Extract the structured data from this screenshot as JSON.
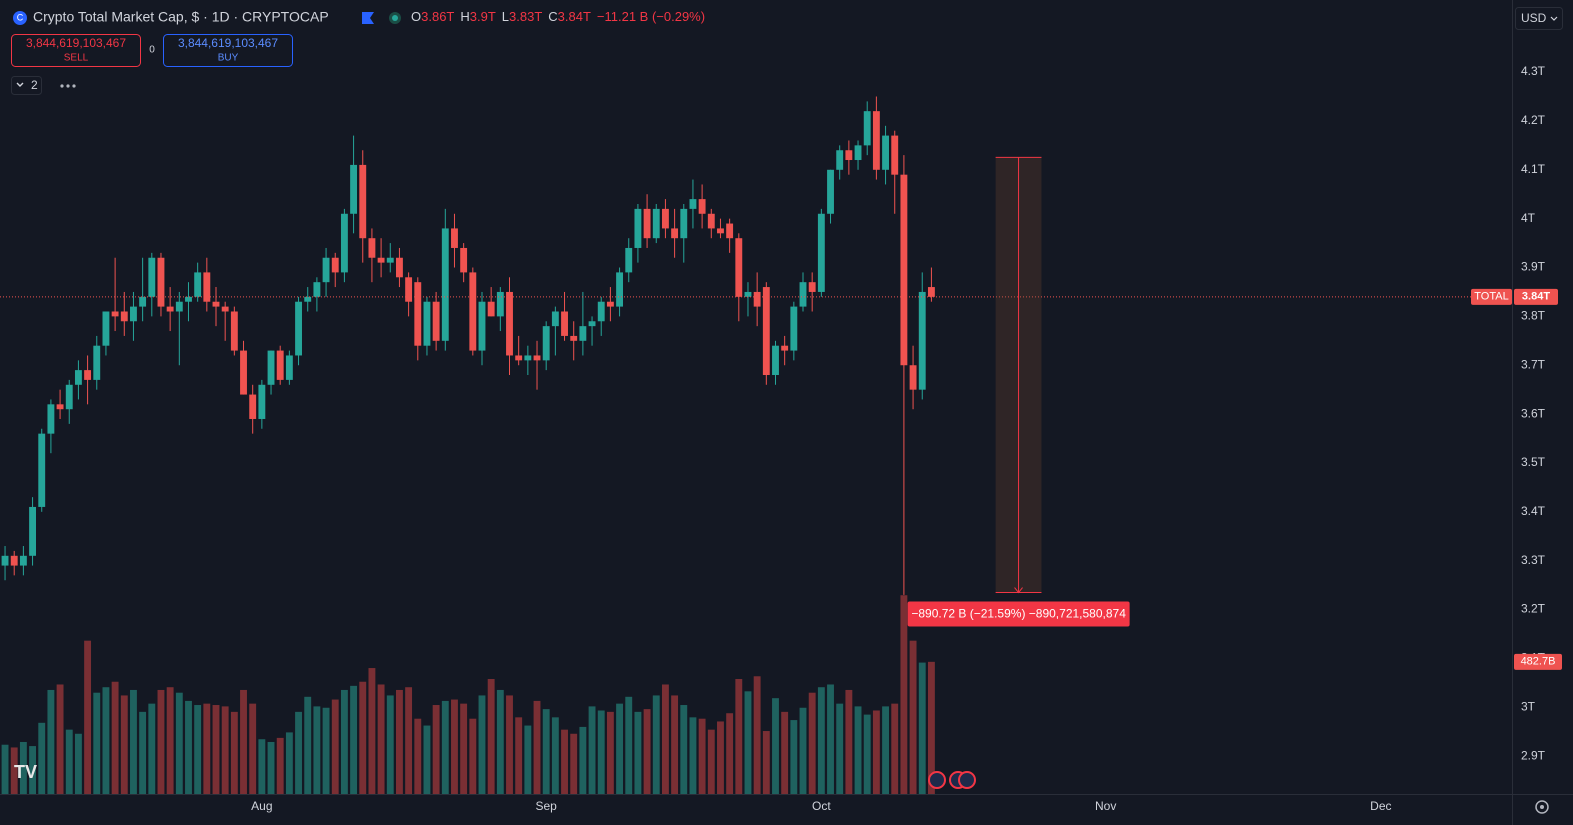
{
  "header": {
    "title": "Crypto Total Market Cap, $ · 1D · CRYPTOCAP",
    "ohlc": [
      {
        "key": "O",
        "value": "3.86T"
      },
      {
        "key": "H",
        "value": "3.9T"
      },
      {
        "key": "L",
        "value": "3.83T"
      },
      {
        "key": "C",
        "value": "3.84T"
      }
    ],
    "change": "−11.21 B (−0.29%)",
    "sell": {
      "price": "3,844,619,103,467",
      "label": "SELL"
    },
    "spread": "0",
    "buy": {
      "price": "3,844,619,103,467",
      "label": "BUY"
    },
    "indicators": "2",
    "currency": "USD"
  },
  "chart_data": {
    "type": "candlestick",
    "open": [
      3.29,
      3.31,
      3.29,
      3.31,
      3.41,
      3.56,
      3.62,
      3.61,
      3.66,
      3.69,
      3.67,
      3.74,
      3.81,
      3.81,
      3.79,
      3.82,
      3.84,
      3.92,
      3.82,
      3.81,
      3.83,
      3.84,
      3.89,
      3.83,
      3.82,
      3.81,
      3.73,
      3.64,
      3.59,
      3.66,
      3.73,
      3.67,
      3.72,
      3.83,
      3.84,
      3.87,
      3.92,
      3.89,
      4.01,
      4.11,
      3.96,
      3.92,
      3.91,
      3.92,
      3.88,
      3.87,
      3.74,
      3.83,
      3.75,
      3.98,
      3.94,
      3.89,
      3.73,
      3.83,
      3.8,
      3.85,
      3.72,
      3.71,
      3.72,
      3.71,
      3.78,
      3.81,
      3.76,
      3.75,
      3.78,
      3.79,
      3.83,
      3.82,
      3.89,
      3.94,
      4.02,
      3.96,
      4.02,
      3.98,
      3.96,
      4.02,
      4.04,
      4.01,
      3.98,
      3.99,
      3.96,
      3.84,
      3.85,
      3.86,
      3.68,
      3.74,
      3.73,
      3.82,
      3.87,
      3.85,
      4.01,
      4.1,
      4.14,
      4.12,
      4.15,
      4.22,
      4.1,
      4.17,
      4.09,
      3.7,
      3.65,
      3.86
    ],
    "high": [
      3.33,
      3.32,
      3.33,
      3.43,
      3.57,
      3.63,
      3.65,
      3.67,
      3.71,
      3.72,
      3.76,
      3.81,
      3.92,
      3.85,
      3.85,
      3.92,
      3.93,
      3.93,
      3.86,
      3.85,
      3.87,
      3.91,
      3.92,
      3.86,
      3.83,
      3.82,
      3.75,
      3.66,
      3.67,
      3.73,
      3.74,
      3.73,
      3.84,
      3.86,
      3.88,
      3.94,
      3.93,
      4.02,
      4.17,
      4.14,
      3.98,
      3.96,
      3.95,
      3.94,
      3.89,
      3.88,
      3.84,
      3.85,
      4.02,
      4.01,
      3.95,
      3.9,
      3.85,
      3.86,
      3.86,
      3.88,
      3.76,
      3.74,
      3.75,
      3.79,
      3.82,
      3.85,
      3.79,
      3.85,
      3.8,
      3.84,
      3.86,
      3.9,
      3.96,
      4.03,
      4.05,
      4.03,
      4.04,
      4.02,
      4.03,
      4.08,
      4.07,
      4.02,
      4.0,
      4.0,
      3.97,
      3.87,
      3.89,
      3.87,
      3.75,
      3.76,
      3.83,
      3.89,
      3.89,
      4.02,
      4.1,
      4.15,
      4.16,
      4.16,
      4.24,
      4.25,
      4.19,
      4.18,
      4.13,
      3.74,
      3.89,
      3.9
    ],
    "low": [
      3.26,
      3.27,
      3.27,
      3.29,
      3.4,
      3.52,
      3.59,
      3.58,
      3.63,
      3.62,
      3.65,
      3.72,
      3.77,
      3.76,
      3.75,
      3.79,
      3.8,
      3.8,
      3.77,
      3.7,
      3.79,
      3.83,
      3.81,
      3.78,
      3.75,
      3.72,
      3.64,
      3.56,
      3.57,
      3.64,
      3.66,
      3.66,
      3.7,
      3.81,
      3.81,
      3.84,
      3.86,
      3.87,
      3.97,
      3.91,
      3.87,
      3.88,
      3.89,
      3.86,
      3.8,
      3.71,
      3.72,
      3.73,
      3.73,
      3.9,
      3.87,
      3.72,
      3.7,
      3.8,
      3.77,
      3.68,
      3.7,
      3.68,
      3.65,
      3.69,
      3.72,
      3.75,
      3.71,
      3.72,
      3.74,
      3.76,
      3.79,
      3.8,
      3.87,
      3.91,
      3.94,
      3.95,
      3.96,
      3.92,
      3.91,
      3.98,
      3.98,
      3.96,
      3.96,
      3.93,
      3.79,
      3.8,
      3.78,
      3.66,
      3.66,
      3.7,
      3.71,
      3.81,
      3.81,
      3.84,
      3.99,
      4.08,
      4.09,
      4.1,
      4.13,
      4.08,
      4.07,
      4.01,
      3.23,
      3.61,
      3.63,
      3.83
    ],
    "close": [
      3.31,
      3.29,
      3.31,
      3.41,
      3.56,
      3.62,
      3.61,
      3.66,
      3.69,
      3.67,
      3.74,
      3.81,
      3.8,
      3.79,
      3.82,
      3.84,
      3.92,
      3.82,
      3.81,
      3.83,
      3.84,
      3.89,
      3.83,
      3.82,
      3.81,
      3.73,
      3.64,
      3.59,
      3.66,
      3.73,
      3.67,
      3.72,
      3.83,
      3.84,
      3.87,
      3.92,
      3.89,
      4.01,
      4.11,
      3.96,
      3.92,
      3.91,
      3.92,
      3.88,
      3.83,
      3.74,
      3.83,
      3.75,
      3.98,
      3.94,
      3.89,
      3.73,
      3.83,
      3.8,
      3.85,
      3.72,
      3.71,
      3.72,
      3.71,
      3.78,
      3.81,
      3.76,
      3.75,
      3.78,
      3.79,
      3.83,
      3.82,
      3.89,
      3.94,
      4.02,
      3.96,
      4.02,
      3.98,
      3.96,
      4.02,
      4.04,
      4.01,
      3.98,
      3.97,
      3.96,
      3.84,
      3.85,
      3.82,
      3.68,
      3.74,
      3.73,
      3.82,
      3.87,
      3.85,
      4.01,
      4.1,
      4.14,
      4.12,
      4.15,
      4.22,
      4.1,
      4.17,
      4.09,
      3.7,
      3.65,
      3.85,
      3.84
    ],
    "volume": [
      180,
      170,
      190,
      175,
      260,
      380,
      400,
      235,
      220,
      560,
      370,
      390,
      410,
      360,
      380,
      300,
      330,
      380,
      390,
      370,
      340,
      325,
      330,
      325,
      320,
      300,
      380,
      330,
      200,
      190,
      205,
      225,
      300,
      355,
      320,
      315,
      345,
      380,
      395,
      410,
      460,
      400,
      360,
      380,
      390,
      275,
      250,
      325,
      340,
      345,
      330,
      275,
      360,
      420,
      380,
      360,
      280,
      250,
      340,
      310,
      280,
      235,
      220,
      245,
      320,
      305,
      300,
      330,
      355,
      300,
      310,
      360,
      400,
      360,
      325,
      280,
      275,
      235,
      265,
      295,
      420,
      375,
      430,
      230,
      350,
      300,
      270,
      315,
      370,
      390,
      400,
      330,
      380,
      320,
      290,
      305,
      320,
      330,
      726,
      560,
      480,
      482.7
    ],
    "volume_labels": [
      null,
      null,
      null,
      null,
      null,
      null,
      null,
      null,
      null,
      null,
      null,
      null,
      null,
      null,
      null,
      null,
      null,
      null,
      null,
      null,
      null,
      null,
      null,
      null,
      null,
      null,
      null,
      null,
      null,
      null,
      null,
      null,
      null,
      null,
      null,
      null,
      null,
      null,
      null,
      null,
      null,
      null,
      null,
      null,
      null,
      null,
      null,
      null,
      null,
      null,
      null,
      null,
      null,
      null,
      null,
      null,
      null,
      null,
      null,
      null,
      null,
      null,
      null,
      null,
      null,
      null,
      null,
      null,
      null,
      null,
      null,
      null,
      null,
      null,
      null,
      null,
      null,
      null,
      null,
      null,
      null,
      null,
      null,
      null,
      null,
      null,
      null,
      null,
      null,
      null,
      null,
      null,
      null,
      null,
      null,
      null,
      null,
      null,
      null,
      null,
      null,
      "482.7B"
    ],
    "xlim": [
      -0.55,
      164.3
    ],
    "xticks": [
      {
        "value": 28,
        "label": "Aug"
      },
      {
        "value": 59,
        "label": "Sep"
      },
      {
        "value": 89,
        "label": "Oct"
      },
      {
        "value": 120,
        "label": "Nov"
      },
      {
        "value": 150,
        "label": "Dec"
      }
    ],
    "ylim": [
      2.8225,
      4.4475
    ],
    "yticks": [
      {
        "value": 4.3,
        "label": "4.3T"
      },
      {
        "value": 4.2,
        "label": "4.2T"
      },
      {
        "value": 4.1,
        "label": "4.1T"
      },
      {
        "value": 4.0,
        "label": "4T"
      },
      {
        "value": 3.9,
        "label": "3.9T"
      },
      {
        "value": 3.8,
        "label": "3.8T"
      },
      {
        "value": 3.7,
        "label": "3.7T"
      },
      {
        "value": 3.6,
        "label": "3.6T"
      },
      {
        "value": 3.5,
        "label": "3.5T"
      },
      {
        "value": 3.4,
        "label": "3.4T"
      },
      {
        "value": 3.3,
        "label": "3.3T"
      },
      {
        "value": 3.2,
        "label": "3.2T"
      },
      {
        "value": 3.1,
        "label": "3.1T"
      },
      {
        "value": 3.0,
        "label": "3T"
      },
      {
        "value": 2.9,
        "label": "2.9T"
      }
    ],
    "y2lim": [
      0,
      2900
    ],
    "grid": false,
    "colors": {
      "up": "#26a69a",
      "down": "#ef5350",
      "volume_up": "#1f625f",
      "volume_down": "#7a2f34"
    },
    "last_price": {
      "name": "TOTAL",
      "label": "3.84T"
    },
    "measure": {
      "x_from": 108,
      "x_to": 113,
      "from": 4.1255,
      "to": 3.23478,
      "label": "−890.72 B (−21.59%) −890,721,580,874"
    }
  }
}
